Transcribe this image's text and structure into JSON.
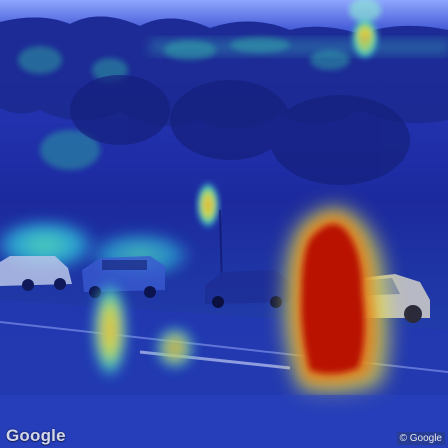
{
  "image": {
    "kind": "street-view-photo-with-attention-heatmap-overlay",
    "heatmap_colormap": [
      "#1a2f9a",
      "#2a7fd0",
      "#3fc6c0",
      "#e6e24a",
      "#e07a1e",
      "#b00000"
    ]
  },
  "branding": {
    "logo_text": "Google",
    "copyright_text": "© Google"
  }
}
